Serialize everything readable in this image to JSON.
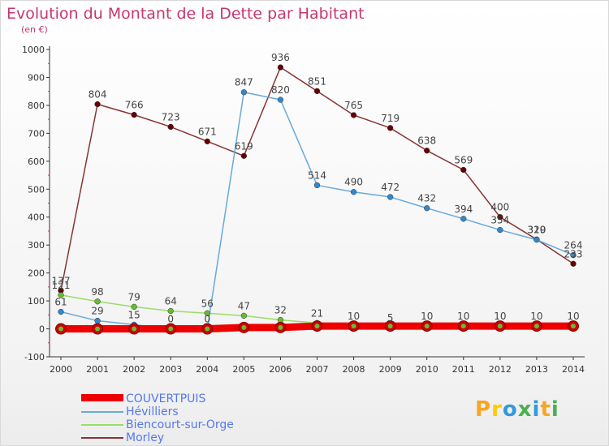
{
  "title": "Evolution du Montant de la Dette par Habitant",
  "subtitle": "(en €)",
  "logo": {
    "letters": [
      "P",
      "r",
      "o",
      "x",
      "i",
      "t",
      "i"
    ],
    "colors": [
      "#f5a623",
      "#ffcc00",
      "#3399dd",
      "#4caf50",
      "#3399dd",
      "#f5a623",
      "#4caf50"
    ]
  },
  "chart_data": {
    "type": "line",
    "title": "Evolution du Montant de la Dette par Habitant",
    "subtitle": "(en €)",
    "x": [
      "2000",
      "2001",
      "2002",
      "2003",
      "2004",
      "2005",
      "2006",
      "2007",
      "2008",
      "2009",
      "2010",
      "2011",
      "2012",
      "2013",
      "2014"
    ],
    "ylim": [
      -100,
      1000
    ],
    "yticks": [
      -100,
      0,
      100,
      200,
      300,
      400,
      500,
      600,
      700,
      800,
      900,
      1000
    ],
    "grid": false,
    "legend": "bottom-left",
    "series": [
      {
        "name": "COUVERTPUIS",
        "color": "#ee0000",
        "marker": "#cc0000",
        "thick": true,
        "show_labels": false,
        "values": [
          0,
          0,
          0,
          0,
          0,
          5,
          5,
          10,
          10,
          10,
          10,
          10,
          10,
          10,
          10
        ]
      },
      {
        "name": "Hévilliers",
        "color": "#66aadd",
        "marker": "#3388cc",
        "thick": false,
        "show_labels": true,
        "values": [
          61,
          29,
          15,
          0,
          0,
          847,
          820,
          514,
          490,
          472,
          432,
          394,
          354,
          319,
          264
        ]
      },
      {
        "name": "Biencourt-sur-Orge",
        "color": "#99dd66",
        "marker": "#66bb33",
        "thick": false,
        "show_labels": true,
        "values": [
          121,
          98,
          79,
          64,
          56,
          47,
          32,
          21,
          10,
          5,
          10,
          10,
          10,
          10,
          10
        ]
      },
      {
        "name": "Morley",
        "color": "#883333",
        "marker": "#660000",
        "thick": false,
        "show_labels": true,
        "values": [
          137,
          804,
          766,
          723,
          671,
          619,
          936,
          851,
          765,
          719,
          638,
          569,
          400,
          320,
          233
        ]
      }
    ]
  }
}
